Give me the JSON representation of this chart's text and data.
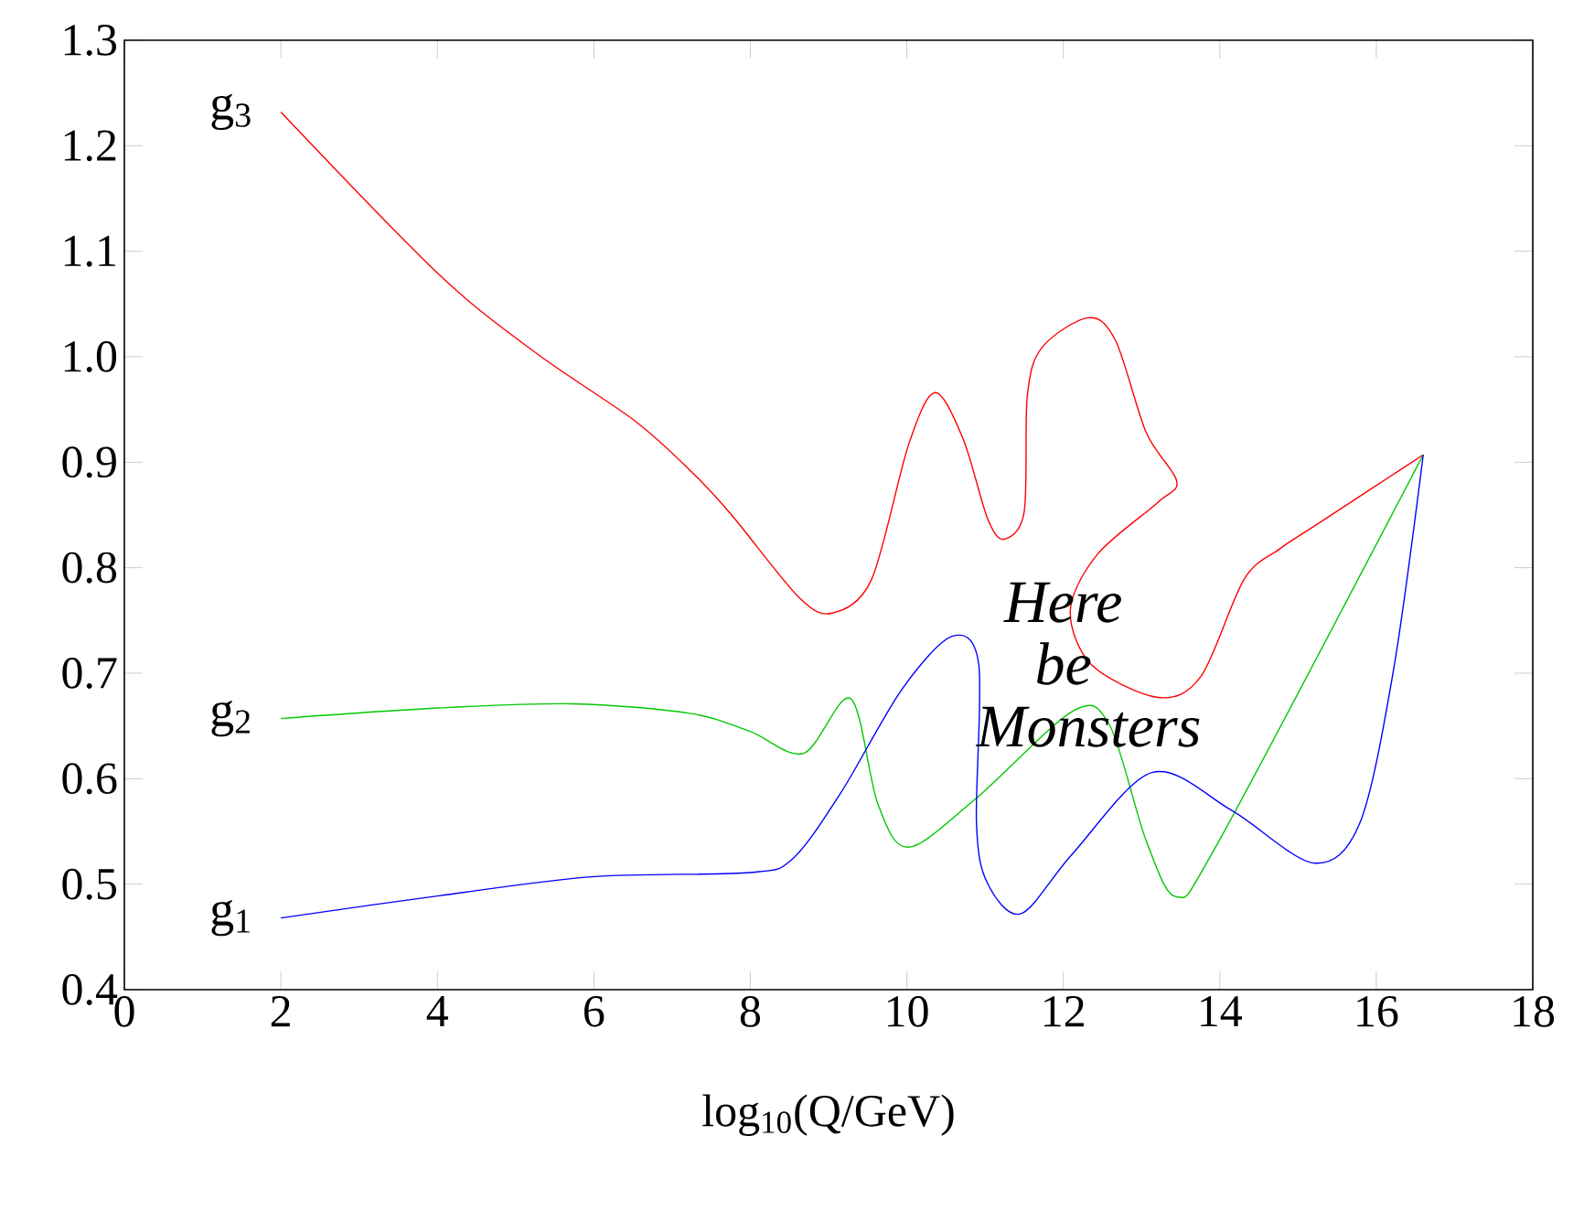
{
  "chart_data": {
    "type": "line",
    "xlabel": "log$_{10}$(Q/GeV)",
    "xlim": [
      0,
      18
    ],
    "ylim": [
      0.4,
      1.3
    ],
    "xticks": [
      0,
      2,
      4,
      6,
      8,
      10,
      12,
      14,
      16,
      18
    ],
    "yticks": [
      0.4,
      0.5,
      0.6,
      0.7,
      0.8,
      0.9,
      {
        "value": 1.0,
        "label": "1.0"
      },
      1.1,
      1.2,
      1.3
    ],
    "annotations": [
      "Here be Monsters"
    ],
    "series": [
      {
        "name": "g$_{3}$",
        "color": "#ff0000",
        "x": [
          2.0,
          4.02,
          5.27,
          6.51,
          7.22,
          7.76,
          8.62,
          9.05,
          9.55,
          10.02,
          10.36,
          10.72,
          11.03,
          11.24,
          11.5,
          11.54,
          11.73,
          12.32,
          12.67,
          13.06,
          13.45,
          13.21,
          12.44,
          12.09,
          12.36,
          13.21,
          13.76,
          14.31,
          14.77,
          15.24,
          16.6
        ],
        "values": [
          1.232,
          1.078,
          1.003,
          0.94,
          0.893,
          0.85,
          0.772,
          0.757,
          0.789,
          0.916,
          0.966,
          0.922,
          0.847,
          0.827,
          0.853,
          0.963,
          1.009,
          1.037,
          1.015,
          0.928,
          0.882,
          0.862,
          0.813,
          0.76,
          0.708,
          0.677,
          0.697,
          0.789,
          0.818,
          0.841,
          0.907
        ]
      },
      {
        "name": "g$_{2}$",
        "color": "#00c800",
        "x": [
          2.0,
          4.02,
          5.73,
          7.22,
          7.99,
          8.68,
          9.28,
          9.63,
          10.02,
          10.88,
          12.12,
          12.59,
          13.06,
          13.45,
          13.99,
          16.6
        ],
        "values": [
          0.657,
          0.667,
          0.671,
          0.662,
          0.645,
          0.624,
          0.676,
          0.576,
          0.535,
          0.581,
          0.664,
          0.651,
          0.541,
          0.488,
          0.541,
          0.907
        ]
      },
      {
        "name": "g$_{1}$",
        "color": "#0000ff",
        "x": [
          2.0,
          4.02,
          5.97,
          7.99,
          8.54,
          9.16,
          9.94,
          10.58,
          10.92,
          10.89,
          11.03,
          11.46,
          12.12,
          13.14,
          14.15,
          15.2,
          15.79,
          16.22,
          16.6
        ],
        "values": [
          0.468,
          0.489,
          0.507,
          0.511,
          0.524,
          0.587,
          0.685,
          0.735,
          0.708,
          0.558,
          0.501,
          0.472,
          0.529,
          0.606,
          0.57,
          0.52,
          0.558,
          0.703,
          0.907
        ]
      }
    ]
  }
}
